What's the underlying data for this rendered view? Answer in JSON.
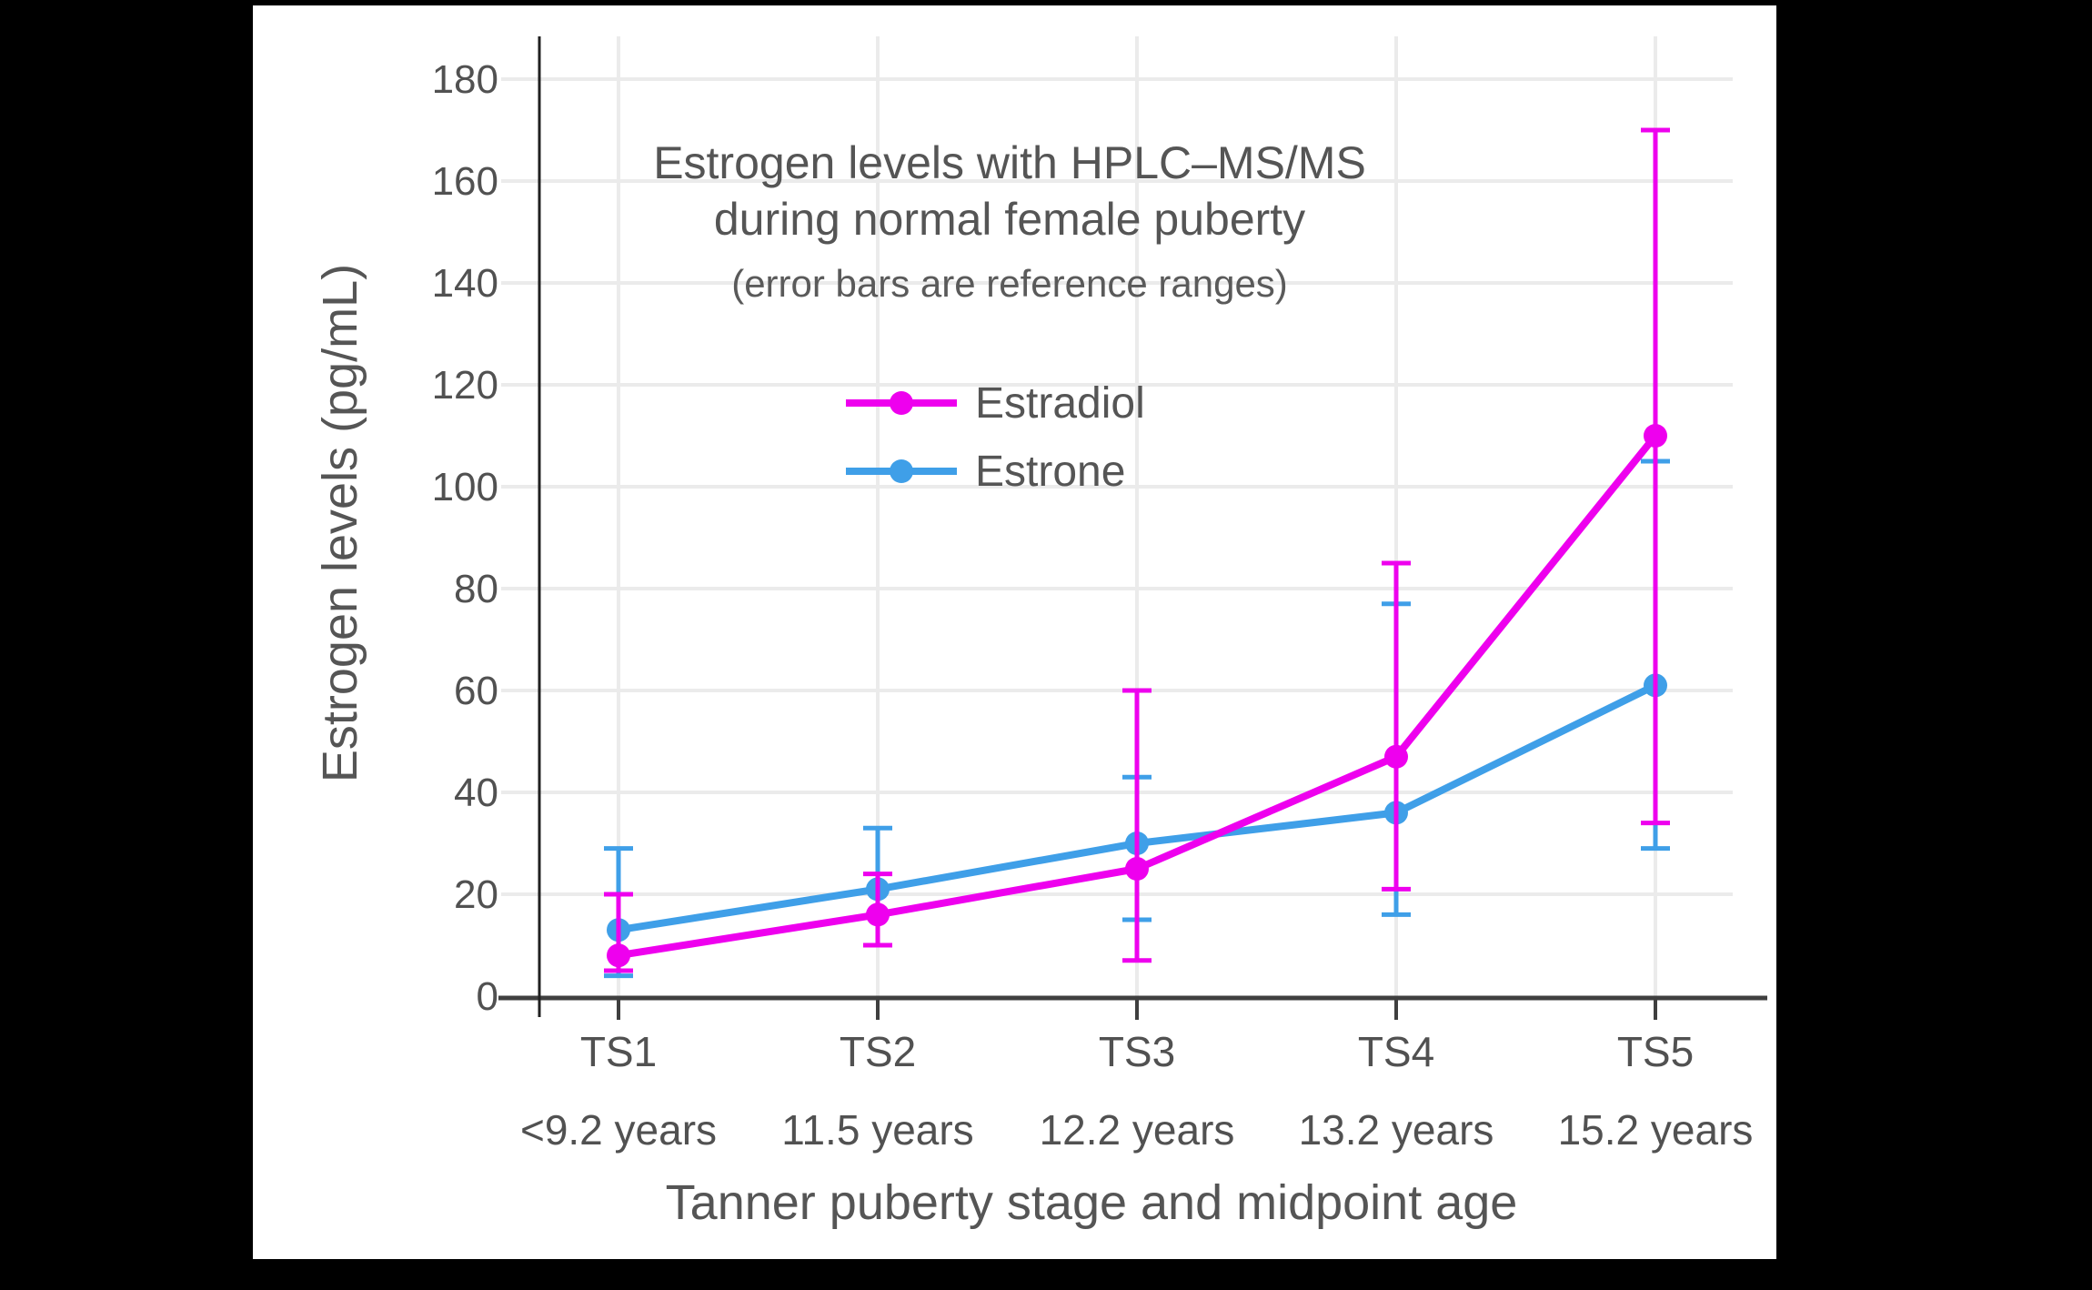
{
  "page": {
    "background": "#000000",
    "panel_background": "#ffffff"
  },
  "chart_data": {
    "type": "line",
    "title": "Estrogen levels with HPLC–MS/MS",
    "title_line2": "during normal female puberty",
    "subtitle": "(error bars are reference ranges)",
    "xlabel": "Tanner puberty stage and midpoint age",
    "ylabel": "Estrogen levels (pg/mL)",
    "categories": [
      "TS1",
      "TS2",
      "TS3",
      "TS4",
      "TS5"
    ],
    "midpoint_ages": [
      "<9.2 years",
      "11.5 years",
      "12.2 years",
      "13.2 years",
      "15.2 years"
    ],
    "yticks": [
      0,
      20,
      40,
      60,
      80,
      100,
      120,
      140,
      160,
      180
    ],
    "ylim": [
      0,
      188
    ],
    "grid": true,
    "legend_position": "upper-center",
    "error_bar_meaning": "reference ranges",
    "colors": {
      "gridline": "#EBEBEB",
      "x_axis": "#3F3F3F",
      "y_axis": "#202020",
      "text": "#555555"
    },
    "series": [
      {
        "name": "Estradiol",
        "color": "#EE00EE",
        "values": [
          8,
          16,
          25,
          47,
          110
        ],
        "error_low": [
          5,
          10,
          7,
          21,
          34
        ],
        "error_high": [
          20,
          24,
          60,
          85,
          170
        ]
      },
      {
        "name": "Estrone",
        "color": "#3F9FE8",
        "values": [
          13,
          21,
          30,
          36,
          61
        ],
        "error_low": [
          4,
          10,
          15,
          16,
          29
        ],
        "error_high": [
          29,
          33,
          43,
          77,
          105
        ]
      }
    ]
  }
}
